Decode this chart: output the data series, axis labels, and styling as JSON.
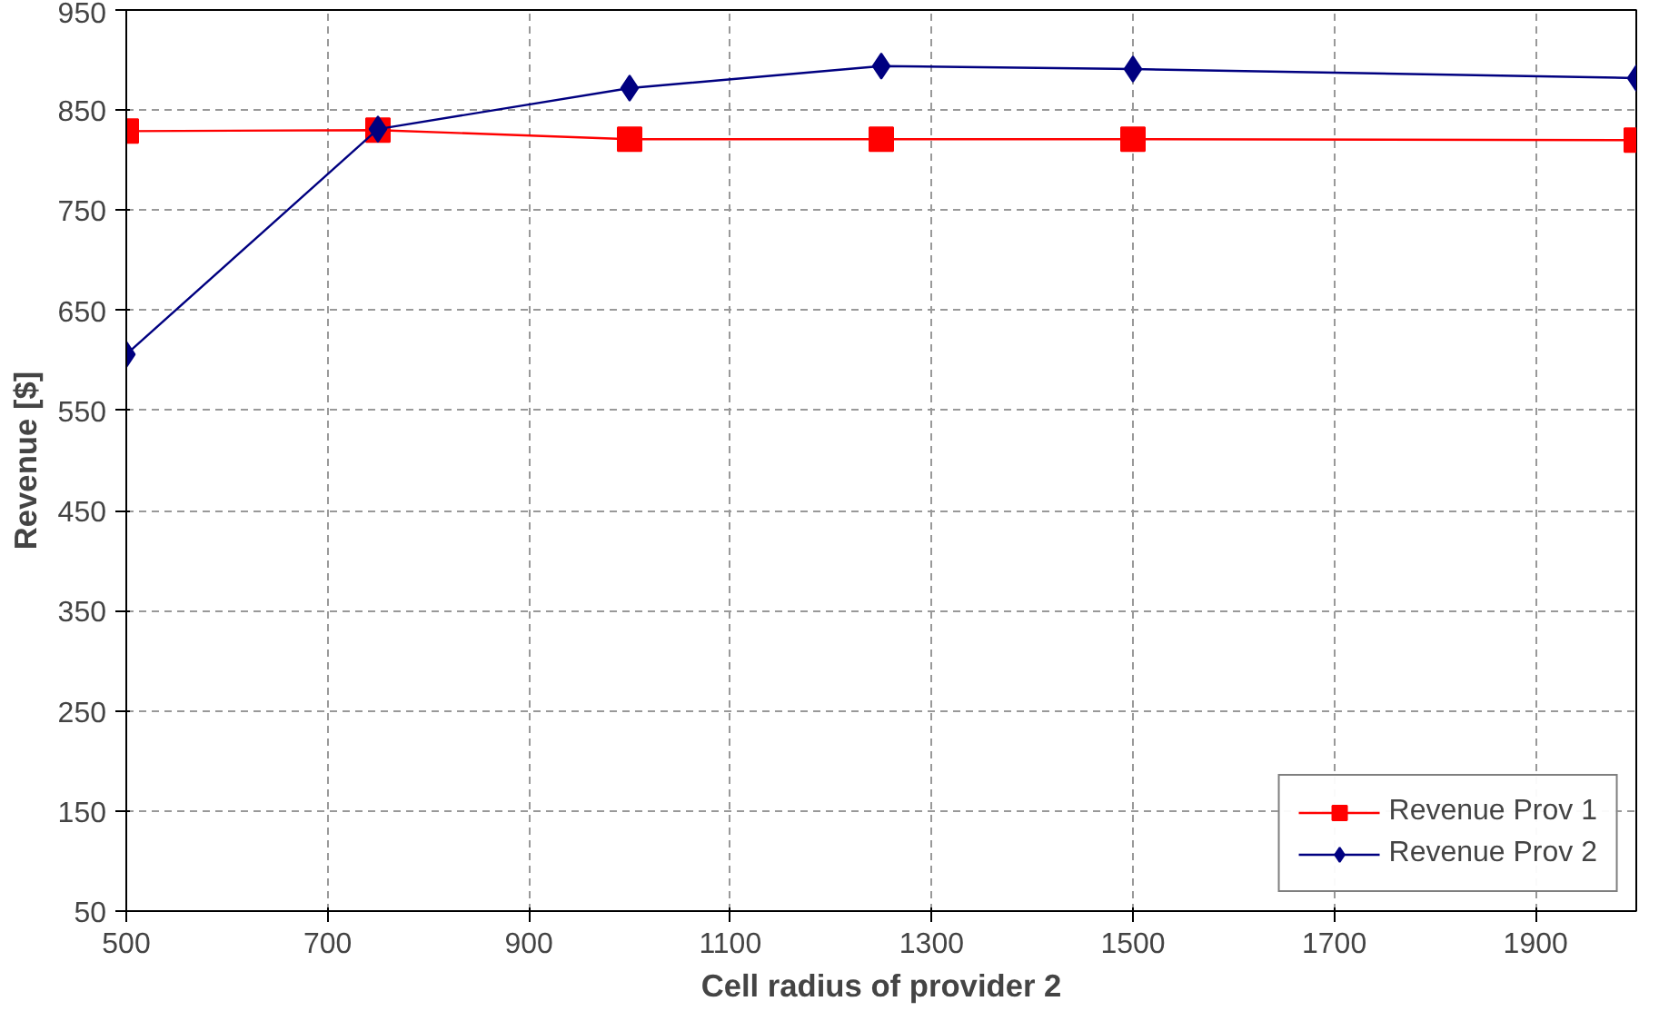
{
  "chart_data": {
    "type": "line",
    "xlabel": "Cell radius of provider 2",
    "ylabel": "Revenue [$]",
    "x": [
      500,
      750,
      1000,
      1250,
      1500,
      2000
    ],
    "series": [
      {
        "name": "Revenue Prov 1",
        "color": "#ff0000",
        "marker": "square",
        "values": [
          829,
          830,
          821,
          821,
          821,
          820
        ]
      },
      {
        "name": "Revenue Prov 2",
        "color": "#000080",
        "marker": "diamond",
        "values": [
          606,
          831,
          872,
          894,
          891,
          882
        ]
      }
    ],
    "xlim": [
      500,
      2000
    ],
    "xticks": [
      500,
      700,
      900,
      1100,
      1300,
      1500,
      1700,
      1900
    ],
    "ylim": [
      50,
      950
    ],
    "yticks": [
      50,
      150,
      250,
      350,
      450,
      550,
      650,
      750,
      850,
      950
    ],
    "grid": true,
    "legend": "bottom right",
    "line_style": "solid"
  }
}
